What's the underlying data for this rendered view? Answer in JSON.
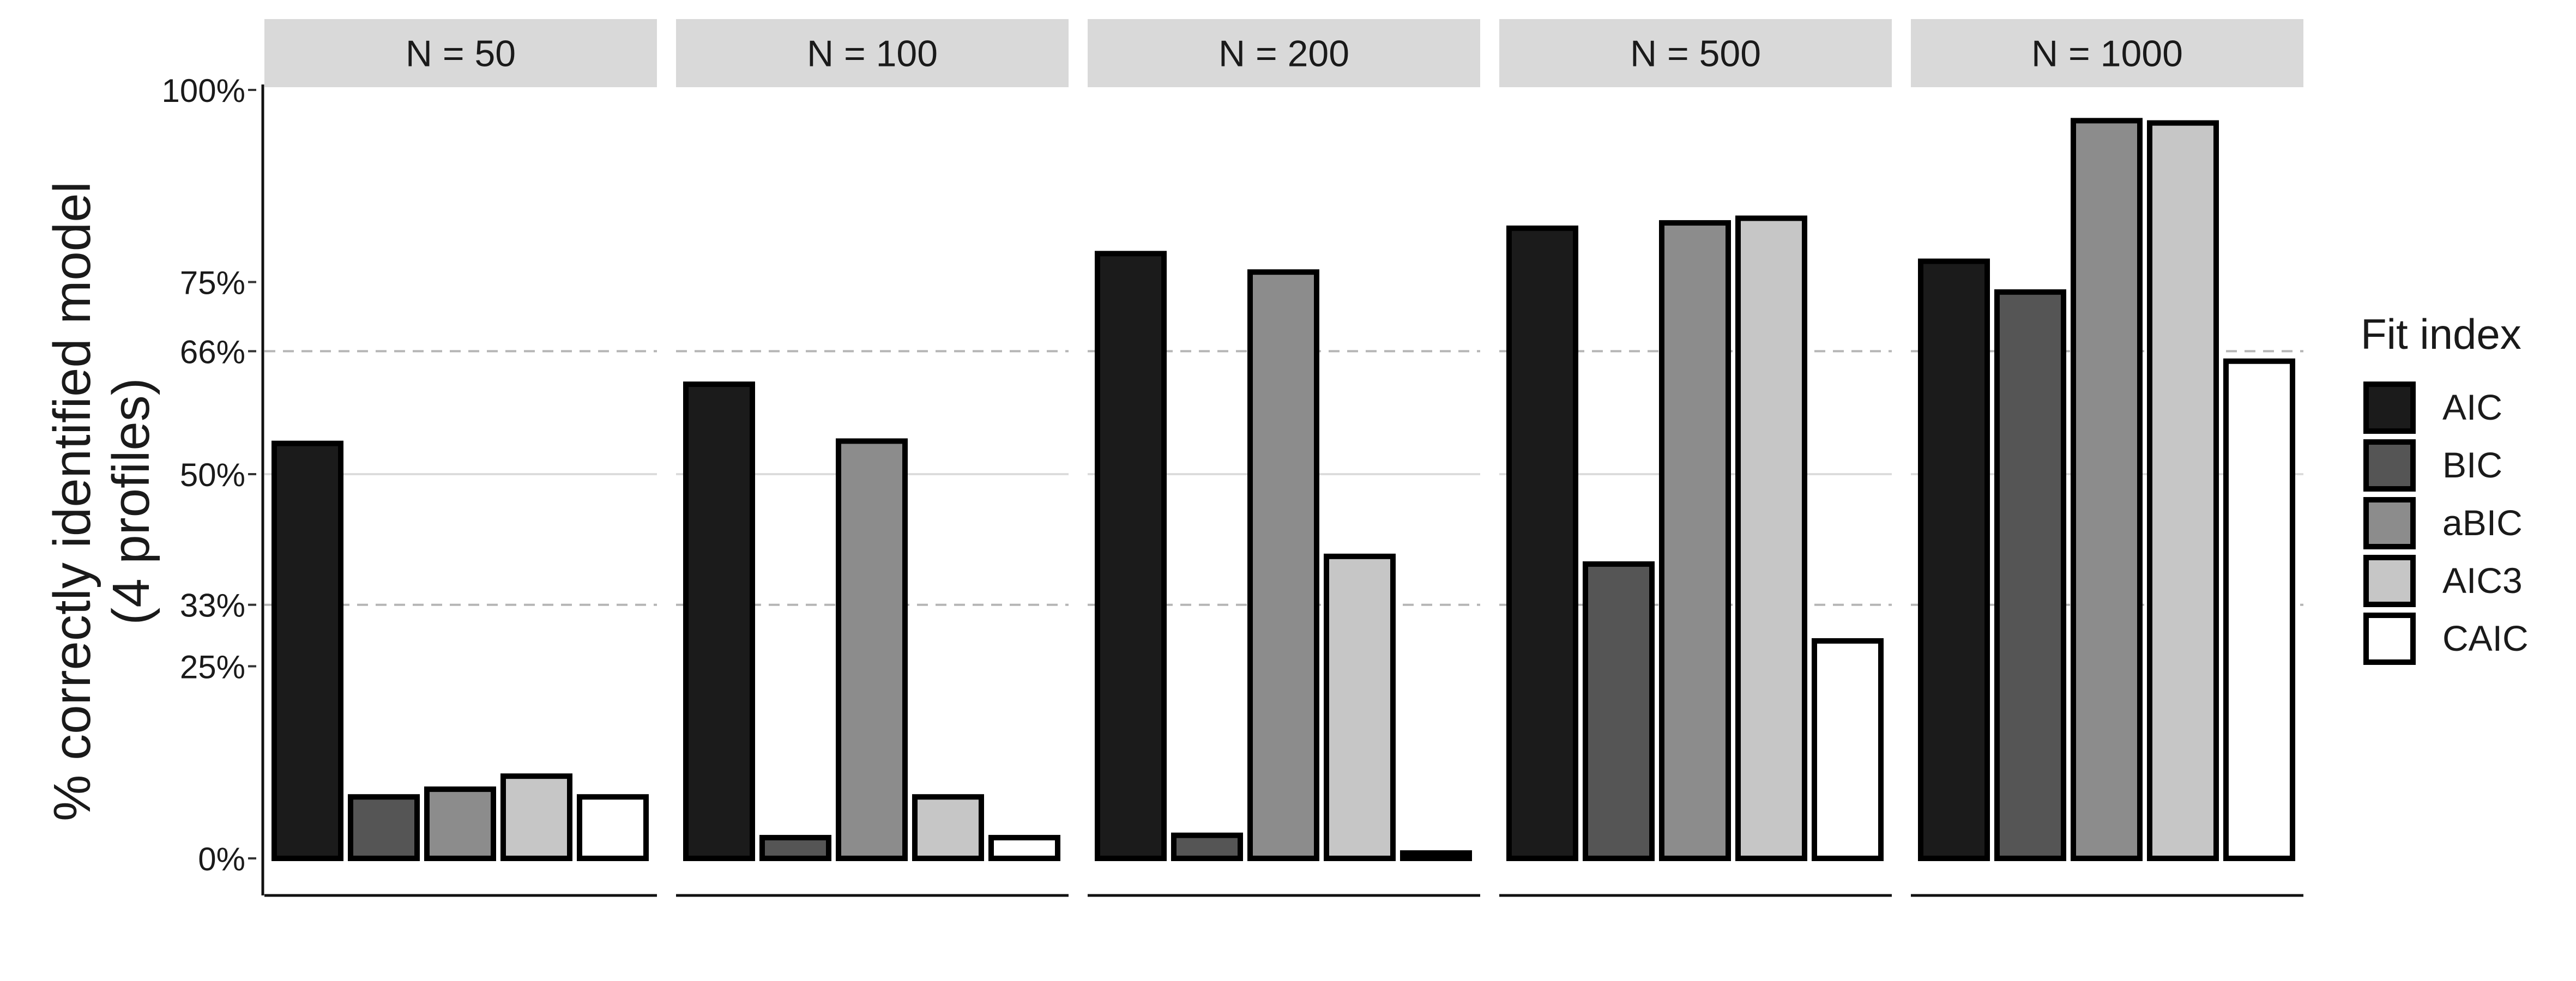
{
  "chart_data": {
    "type": "bar",
    "ylabel": "% correctly identified model\n(4 profiles)",
    "ylim": [
      0,
      100
    ],
    "yticks": [
      {
        "value": 0,
        "label": "0%"
      },
      {
        "value": 25,
        "label": "25%"
      },
      {
        "value": 33,
        "label": "33%"
      },
      {
        "value": 50,
        "label": "50%"
      },
      {
        "value": 66,
        "label": "66%"
      },
      {
        "value": 75,
        "label": "75%"
      },
      {
        "value": 100,
        "label": "100%"
      }
    ],
    "reference_lines": [
      {
        "value": 33,
        "style": "dashed"
      },
      {
        "value": 50,
        "style": "solid"
      },
      {
        "value": 66,
        "style": "dashed"
      }
    ],
    "legend": {
      "title": "Fit index",
      "placement": "right",
      "entries": [
        {
          "name": "AIC",
          "color": "#1b1b1b"
        },
        {
          "name": "BIC",
          "color": "#555555"
        },
        {
          "name": "aBIC",
          "color": "#8c8c8c"
        },
        {
          "name": "AIC3",
          "color": "#c6c6c6"
        },
        {
          "name": "CAIC",
          "color": "#ffffff"
        }
      ]
    },
    "categories": [
      "AIC",
      "BIC",
      "aBIC",
      "AIC3",
      "CAIC"
    ],
    "facets": [
      {
        "label": "N = 50",
        "values": [
          54,
          8,
          9,
          10.7,
          8
        ]
      },
      {
        "label": "N = 100",
        "values": [
          61.7,
          2.7,
          54.3,
          8,
          2.7
        ]
      },
      {
        "label": "N = 200",
        "values": [
          78.7,
          3,
          76.3,
          39.3,
          0.7
        ]
      },
      {
        "label": "N = 500",
        "values": [
          82,
          38.3,
          82.7,
          83.3,
          28.3
        ]
      },
      {
        "label": "N = 1000",
        "values": [
          77.7,
          73.7,
          96,
          95.7,
          64.7
        ]
      }
    ]
  }
}
